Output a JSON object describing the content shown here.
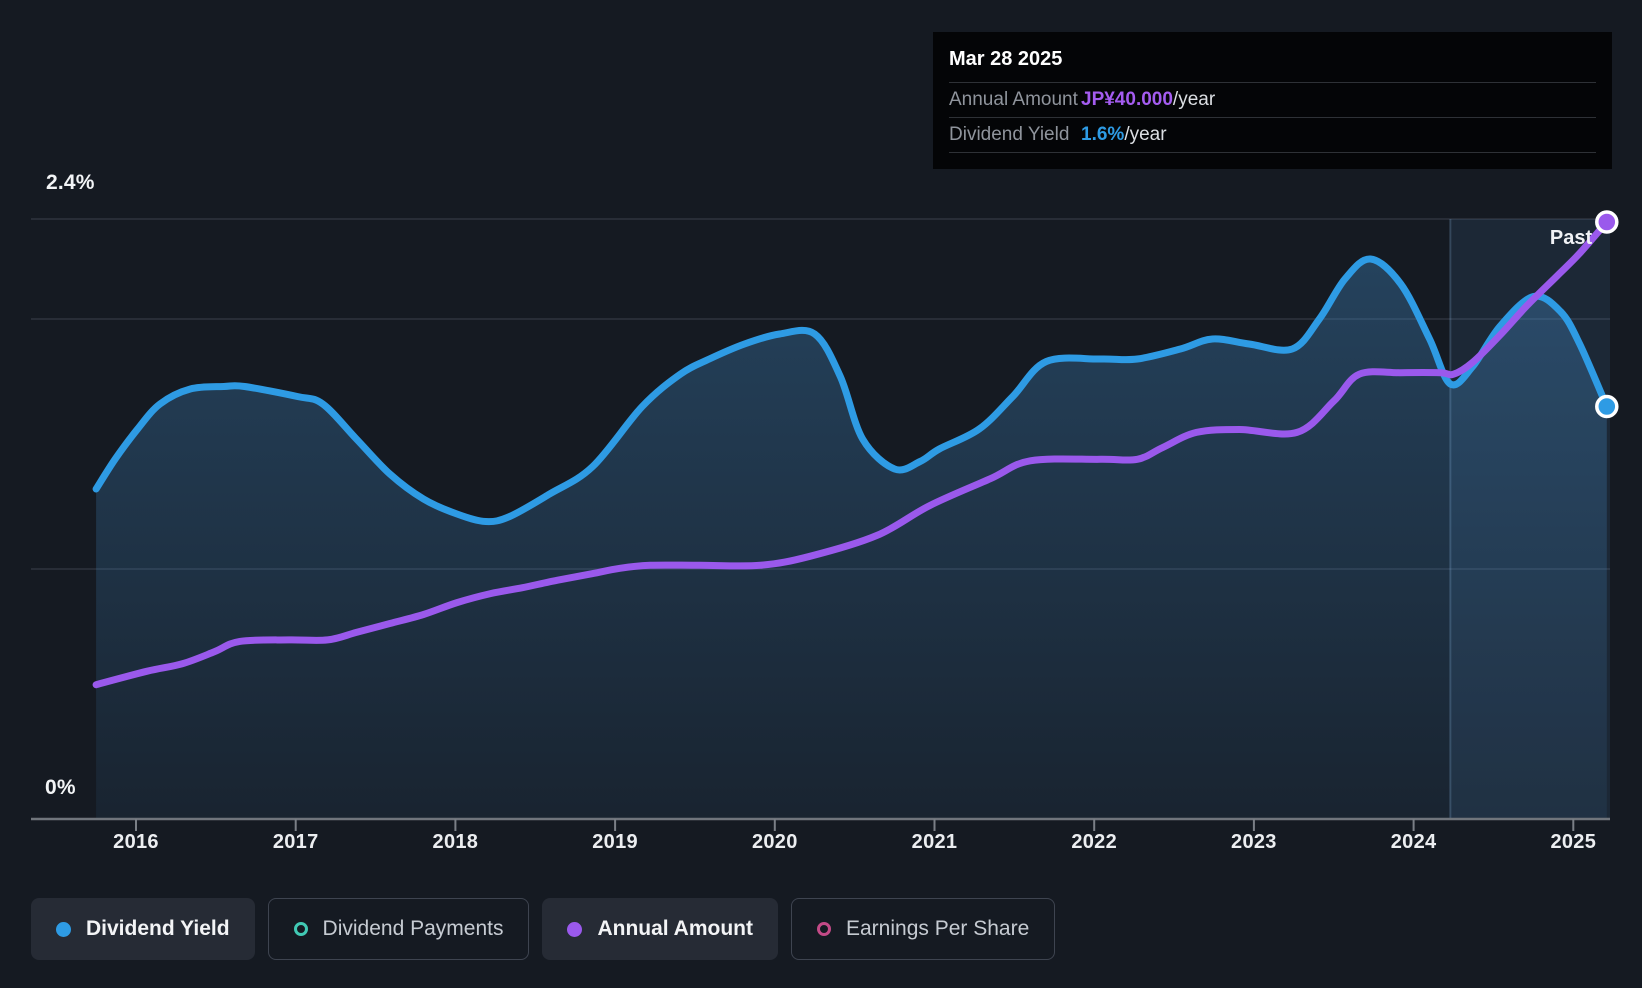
{
  "past_label": "Past",
  "axis": {
    "y_top_label": "2.4%",
    "y_bottom_label": "0%",
    "years": [
      "2016",
      "2017",
      "2018",
      "2019",
      "2020",
      "2021",
      "2022",
      "2023",
      "2024",
      "2025"
    ]
  },
  "tooltip": {
    "date": "Mar 28 2025",
    "rows": [
      {
        "label": "Annual Amount",
        "value": "JP¥40.000",
        "suffix": "/year",
        "color": "#a45cf0"
      },
      {
        "label": "Dividend Yield",
        "value": "1.6%",
        "suffix": "/year",
        "color": "#2e9be4"
      }
    ]
  },
  "legend": [
    {
      "label": "Dividend Yield",
      "color": "#2e9be4",
      "style": "filled",
      "active": true
    },
    {
      "label": "Dividend Payments",
      "color": "#41c9b4",
      "style": "ring",
      "active": false
    },
    {
      "label": "Annual Amount",
      "color": "#9a59ec",
      "style": "filled",
      "active": true
    },
    {
      "label": "Earnings Per Share",
      "color": "#c34a87",
      "style": "ring",
      "active": false
    }
  ],
  "chart_data": {
    "type": "line",
    "title": "Dividend history",
    "x_range": [
      2015.75,
      2025.21
    ],
    "grid_on": true,
    "past_band_start": 2024.23,
    "percent_axis": {
      "min": 0,
      "max": 2.4,
      "gridlines": [
        2.4,
        2.0,
        1.0,
        0
      ]
    },
    "yen_axis": {
      "min": 0,
      "max": 40
    },
    "series": [
      {
        "name": "Dividend Yield",
        "unit": "%",
        "axis": "percent",
        "color": "#2e9be4",
        "area": true,
        "end_value_label": "1.6%/year",
        "points": [
          [
            2015.75,
            1.32
          ],
          [
            2015.87,
            1.44
          ],
          [
            2016.01,
            1.56
          ],
          [
            2016.15,
            1.66
          ],
          [
            2016.34,
            1.72
          ],
          [
            2016.55,
            1.73
          ],
          [
            2016.68,
            1.73
          ],
          [
            2017.01,
            1.69
          ],
          [
            2017.17,
            1.66
          ],
          [
            2017.38,
            1.52
          ],
          [
            2017.59,
            1.38
          ],
          [
            2017.8,
            1.28
          ],
          [
            2018.01,
            1.22
          ],
          [
            2018.19,
            1.19
          ],
          [
            2018.34,
            1.21
          ],
          [
            2018.59,
            1.3
          ],
          [
            2018.86,
            1.41
          ],
          [
            2019.17,
            1.65
          ],
          [
            2019.41,
            1.78
          ],
          [
            2019.59,
            1.84
          ],
          [
            2019.81,
            1.9
          ],
          [
            2020.03,
            1.94
          ],
          [
            2020.25,
            1.94
          ],
          [
            2020.41,
            1.77
          ],
          [
            2020.55,
            1.52
          ],
          [
            2020.75,
            1.4
          ],
          [
            2020.91,
            1.43
          ],
          [
            2021.03,
            1.48
          ],
          [
            2021.28,
            1.56
          ],
          [
            2021.49,
            1.69
          ],
          [
            2021.7,
            1.83
          ],
          [
            2022.04,
            1.84
          ],
          [
            2022.27,
            1.84
          ],
          [
            2022.54,
            1.88
          ],
          [
            2022.74,
            1.92
          ],
          [
            2022.97,
            1.9
          ],
          [
            2023.24,
            1.88
          ],
          [
            2023.41,
            2.0
          ],
          [
            2023.57,
            2.16
          ],
          [
            2023.73,
            2.24
          ],
          [
            2023.92,
            2.14
          ],
          [
            2024.1,
            1.92
          ],
          [
            2024.23,
            1.74
          ],
          [
            2024.37,
            1.81
          ],
          [
            2024.54,
            1.97
          ],
          [
            2024.75,
            2.09
          ],
          [
            2024.92,
            2.03
          ],
          [
            2025.04,
            1.9
          ],
          [
            2025.21,
            1.65
          ]
        ]
      },
      {
        "name": "Annual Amount",
        "unit": "JP¥/year",
        "axis": "yen",
        "color": "#9a59ec",
        "area": false,
        "end_value_label": "JP¥40.000/year",
        "points": [
          [
            2015.75,
            9.0
          ],
          [
            2016.07,
            9.9
          ],
          [
            2016.29,
            10.4
          ],
          [
            2016.49,
            11.2
          ],
          [
            2016.65,
            11.9
          ],
          [
            2016.96,
            12.0
          ],
          [
            2017.2,
            12.0
          ],
          [
            2017.38,
            12.5
          ],
          [
            2017.59,
            13.1
          ],
          [
            2017.8,
            13.7
          ],
          [
            2018.01,
            14.5
          ],
          [
            2018.22,
            15.1
          ],
          [
            2018.42,
            15.5
          ],
          [
            2018.64,
            16.0
          ],
          [
            2018.84,
            16.4
          ],
          [
            2019.03,
            16.8
          ],
          [
            2019.22,
            17.0
          ],
          [
            2019.53,
            17.0
          ],
          [
            2019.91,
            17.0
          ],
          [
            2020.22,
            17.6
          ],
          [
            2020.64,
            19.0
          ],
          [
            2020.97,
            21.0
          ],
          [
            2021.35,
            22.8
          ],
          [
            2021.6,
            24.0
          ],
          [
            2022.04,
            24.1
          ],
          [
            2022.27,
            24.1
          ],
          [
            2022.43,
            24.9
          ],
          [
            2022.64,
            25.9
          ],
          [
            2022.91,
            26.1
          ],
          [
            2023.27,
            25.9
          ],
          [
            2023.5,
            28.0
          ],
          [
            2023.66,
            29.8
          ],
          [
            2023.92,
            29.9
          ],
          [
            2024.17,
            29.9
          ],
          [
            2024.25,
            29.8
          ],
          [
            2024.37,
            30.6
          ],
          [
            2024.54,
            32.4
          ],
          [
            2024.71,
            34.4
          ],
          [
            2024.9,
            36.4
          ],
          [
            2025.04,
            37.9
          ],
          [
            2025.21,
            40.0
          ]
        ]
      }
    ]
  }
}
